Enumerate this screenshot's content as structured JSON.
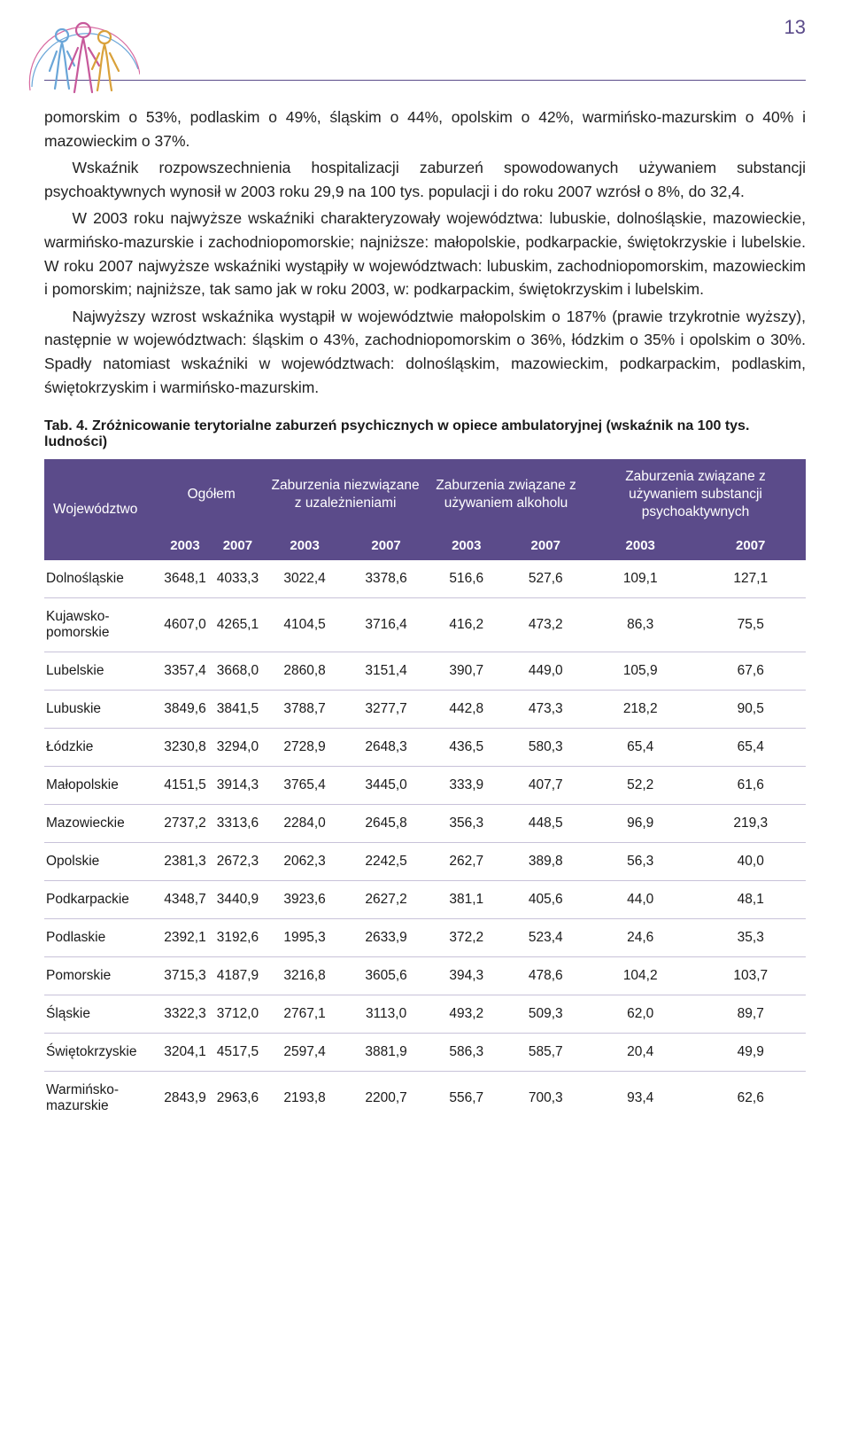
{
  "pageNumber": "13",
  "paragraphs": {
    "p1": "pomorskim o 53%, podlaskim o 49%, śląskim o 44%, opolskim o 42%, warmińsko-mazurskim o 40% i mazowieckim o 37%.",
    "p2": "Wskaźnik rozpowszechnienia hospitalizacji zaburzeń spowodowanych używaniem substancji psychoaktywnych wynosił w 2003 roku 29,9 na 100 tys. populacji i do roku 2007 wzrósł o 8%, do 32,4.",
    "p3": "W 2003 roku najwyższe wskaźniki charakteryzowały województwa: lubuskie, dolnośląskie, mazowieckie, warmińsko-mazurskie i zachodniopomorskie; najniższe: małopolskie, podkarpackie, świętokrzyskie i lubelskie. W roku 2007 najwyższe wskaźniki wystąpiły w województwach: lubuskim, zachodniopomorskim, mazowieckim i pomorskim; najniższe, tak samo jak w roku 2003, w: podkarpackim, świętokrzyskim i lubelskim.",
    "p4": "Najwyższy wzrost wskaźnika wystąpił w województwie małopolskim o 187% (prawie trzykrotnie wyższy), następnie w województwach: śląskim o 43%, zachodniopomorskim o 36%, łódzkim o 35% i opolskim o 30%. Spadły natomiast wskaźniki w województwach: dolnośląskim, mazowieckim, podkarpackim, podlaskim, świętokrzyskim i warmińsko-mazurskim."
  },
  "tableCaption": "Tab. 4. Zróżnicowanie terytorialne zaburzeń psychicznych w opiece ambulatoryjnej (wskaźnik na 100 tys. ludności)",
  "headers": {
    "woj": "Województwo",
    "ogolem": "Ogółem",
    "g1": "Zaburzenia niezwiązane z uzależnieniami",
    "g2": "Zaburzenia związane z używaniem alkoholu",
    "g3": "Zaburzenia związane z używaniem substancji psychoaktywnych",
    "y2003": "2003",
    "y2007": "2007"
  },
  "rows": [
    {
      "name": "Dolnośląskie",
      "v": [
        "3648,1",
        "4033,3",
        "3022,4",
        "3378,6",
        "516,6",
        "527,6",
        "109,1",
        "127,1"
      ]
    },
    {
      "name": "Kujawsko-pomorskie",
      "v": [
        "4607,0",
        "4265,1",
        "4104,5",
        "3716,4",
        "416,2",
        "473,2",
        "86,3",
        "75,5"
      ]
    },
    {
      "name": "Lubelskie",
      "v": [
        "3357,4",
        "3668,0",
        "2860,8",
        "3151,4",
        "390,7",
        "449,0",
        "105,9",
        "67,6"
      ]
    },
    {
      "name": "Lubuskie",
      "v": [
        "3849,6",
        "3841,5",
        "3788,7",
        "3277,7",
        "442,8",
        "473,3",
        "218,2",
        "90,5"
      ]
    },
    {
      "name": "Łódzkie",
      "v": [
        "3230,8",
        "3294,0",
        "2728,9",
        "2648,3",
        "436,5",
        "580,3",
        "65,4",
        "65,4"
      ]
    },
    {
      "name": "Małopolskie",
      "v": [
        "4151,5",
        "3914,3",
        "3765,4",
        "3445,0",
        "333,9",
        "407,7",
        "52,2",
        "61,6"
      ]
    },
    {
      "name": "Mazowieckie",
      "v": [
        "2737,2",
        "3313,6",
        "2284,0",
        "2645,8",
        "356,3",
        "448,5",
        "96,9",
        "219,3"
      ]
    },
    {
      "name": "Opolskie",
      "v": [
        "2381,3",
        "2672,3",
        "2062,3",
        "2242,5",
        "262,7",
        "389,8",
        "56,3",
        "40,0"
      ]
    },
    {
      "name": "Podkarpackie",
      "v": [
        "4348,7",
        "3440,9",
        "3923,6",
        "2627,2",
        "381,1",
        "405,6",
        "44,0",
        "48,1"
      ]
    },
    {
      "name": "Podlaskie",
      "v": [
        "2392,1",
        "3192,6",
        "1995,3",
        "2633,9",
        "372,2",
        "523,4",
        "24,6",
        "35,3"
      ]
    },
    {
      "name": "Pomorskie",
      "v": [
        "3715,3",
        "4187,9",
        "3216,8",
        "3605,6",
        "394,3",
        "478,6",
        "104,2",
        "103,7"
      ]
    },
    {
      "name": "Śląskie",
      "v": [
        "3322,3",
        "3712,0",
        "2767,1",
        "3113,0",
        "493,2",
        "509,3",
        "62,0",
        "89,7"
      ]
    },
    {
      "name": "Świętokrzyskie",
      "v": [
        "3204,1",
        "4517,5",
        "2597,4",
        "3881,9",
        "586,3",
        "585,7",
        "20,4",
        "49,9"
      ]
    },
    {
      "name": "Warmińsko-mazurskie",
      "v": [
        "2843,9",
        "2963,6",
        "2193,8",
        "2200,7",
        "556,7",
        "700,3",
        "93,4",
        "62,6"
      ]
    }
  ],
  "style": {
    "headerBg": "#5b4b8a",
    "headerText": "#ffffff",
    "rowBorder": "#c8c2d9",
    "bodyFontSize": 17.5,
    "tableFontSize": 15.5
  }
}
